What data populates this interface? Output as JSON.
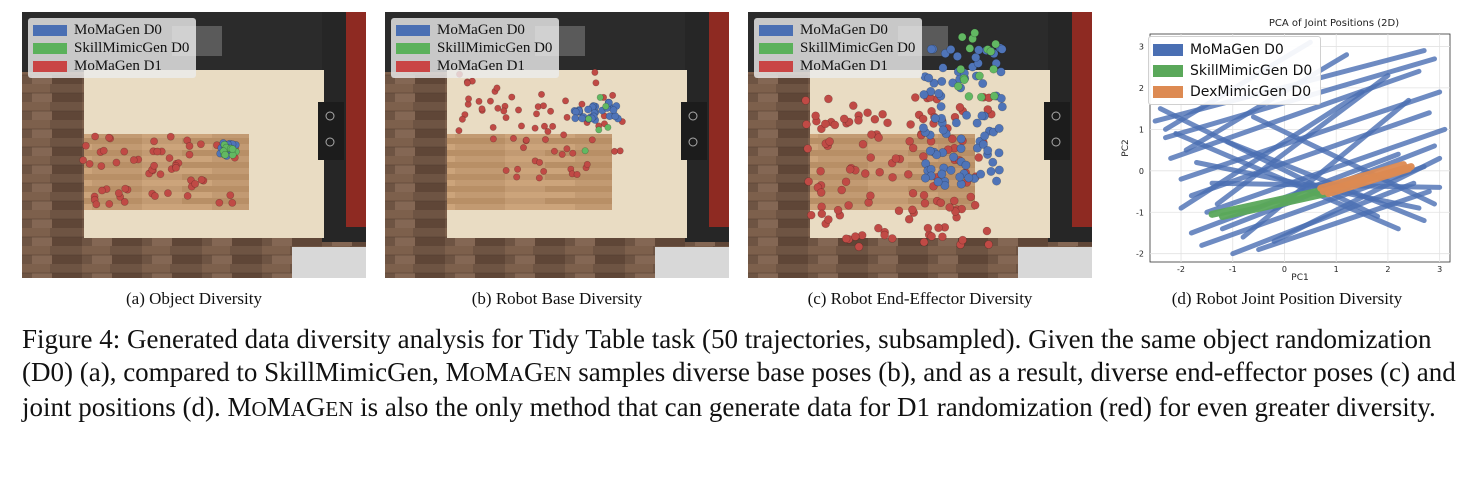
{
  "panels": [
    {
      "caption": "(a) Object Diversity"
    },
    {
      "caption": "(b) Robot Base Diversity"
    },
    {
      "caption": "(c) Robot End-Effector Diversity"
    }
  ],
  "legend": [
    {
      "name": "MoMaGen D0",
      "color": "#4a6fb3"
    },
    {
      "name": "SkillMimicGen D0",
      "color": "#5bb15b"
    },
    {
      "name": "MoMaGen D1",
      "color": "#c94545"
    }
  ],
  "chart_data": {
    "type": "line",
    "title": "PCA of Joint Positions (2D)",
    "xlabel": "PC1",
    "ylabel": "PC2",
    "xlim": [
      -2.6,
      3.2
    ],
    "ylim": [
      -2.2,
      3.3
    ],
    "xticks": [
      -2,
      -1,
      0,
      1,
      2,
      3
    ],
    "yticks": [
      -2,
      -1,
      0,
      1,
      2,
      3
    ],
    "grid": true,
    "legend_position": "top-left",
    "caption": "(d) Robot Joint Position Diversity",
    "series": [
      {
        "name": "MoMaGen D0",
        "color": "#4a6fb3",
        "segments": [
          [
            [
              -2.5,
              1.2
            ],
            [
              2.7,
              2.9
            ]
          ],
          [
            [
              -2.3,
              0.8
            ],
            [
              2.9,
              2.7
            ]
          ],
          [
            [
              -2.2,
              0.3
            ],
            [
              2.6,
              2.4
            ]
          ],
          [
            [
              -2.0,
              -0.2
            ],
            [
              3.0,
              1.9
            ]
          ],
          [
            [
              -1.8,
              -0.6
            ],
            [
              2.8,
              1.4
            ]
          ],
          [
            [
              -1.5,
              -1.0
            ],
            [
              3.1,
              1.0
            ]
          ],
          [
            [
              -1.2,
              -1.4
            ],
            [
              2.9,
              0.6
            ]
          ],
          [
            [
              -1.6,
              -1.8
            ],
            [
              2.7,
              0.1
            ]
          ],
          [
            [
              -1.0,
              -2.0
            ],
            [
              2.5,
              -0.3
            ]
          ],
          [
            [
              -0.5,
              -1.9
            ],
            [
              2.8,
              -0.5
            ]
          ],
          [
            [
              -2.4,
              1.5
            ],
            [
              1.8,
              -1.1
            ]
          ],
          [
            [
              -2.1,
              0.9
            ],
            [
              2.2,
              -1.4
            ]
          ],
          [
            [
              -1.7,
              0.2
            ],
            [
              2.6,
              -0.9
            ]
          ],
          [
            [
              -1.4,
              -0.3
            ],
            [
              3.0,
              -0.4
            ]
          ],
          [
            [
              -2.3,
              1.0
            ],
            [
              0.5,
              3.1
            ]
          ],
          [
            [
              -1.9,
              0.5
            ],
            [
              1.2,
              2.8
            ]
          ],
          [
            [
              -1.3,
              -0.8
            ],
            [
              2.0,
              2.3
            ]
          ],
          [
            [
              -0.8,
              -1.6
            ],
            [
              2.4,
              1.7
            ]
          ],
          [
            [
              -0.2,
              -1.7
            ],
            [
              3.0,
              0.3
            ]
          ],
          [
            [
              -2.0,
              -0.9
            ],
            [
              1.5,
              1.9
            ]
          ],
          [
            [
              -1.1,
              0.7
            ],
            [
              2.7,
              -1.2
            ]
          ],
          [
            [
              -0.6,
              1.3
            ],
            [
              2.9,
              -0.8
            ]
          ],
          [
            [
              -1.8,
              -1.5
            ],
            [
              2.2,
              0.4
            ]
          ]
        ]
      },
      {
        "name": "SkillMimicGen D0",
        "color": "#5aa85a",
        "segments": [
          [
            [
              -1.4,
              -1.05
            ],
            [
              0.7,
              -0.48
            ]
          ],
          [
            [
              -1.2,
              -1.1
            ],
            [
              0.8,
              -0.55
            ]
          ]
        ]
      },
      {
        "name": "DexMimicGen D0",
        "color": "#dd8a52",
        "segments": [
          [
            [
              0.75,
              -0.5
            ],
            [
              2.45,
              0.1
            ]
          ],
          [
            [
              0.85,
              -0.55
            ],
            [
              2.4,
              0.05
            ]
          ],
          [
            [
              0.7,
              -0.42
            ],
            [
              2.3,
              0.15
            ]
          ]
        ]
      }
    ]
  },
  "figure_caption": {
    "p1": "Figure 4: Generated data diversity analysis for Tidy Table task (50 trajectories, subsampled). Given the same object randomization (D0) (a), compared to SkillMimicGen, ",
    "m1": "M",
    "m2": "O",
    "m3": "M",
    "m4": "A",
    "m5": "G",
    "m6": "EN",
    "p2": " samples diverse base poses (b), and as a result, diverse end-effector poses (c) and joint positions (d). ",
    "p3": " is also the only method that can generate data for D1 randomization (red) for even greater diversity."
  }
}
